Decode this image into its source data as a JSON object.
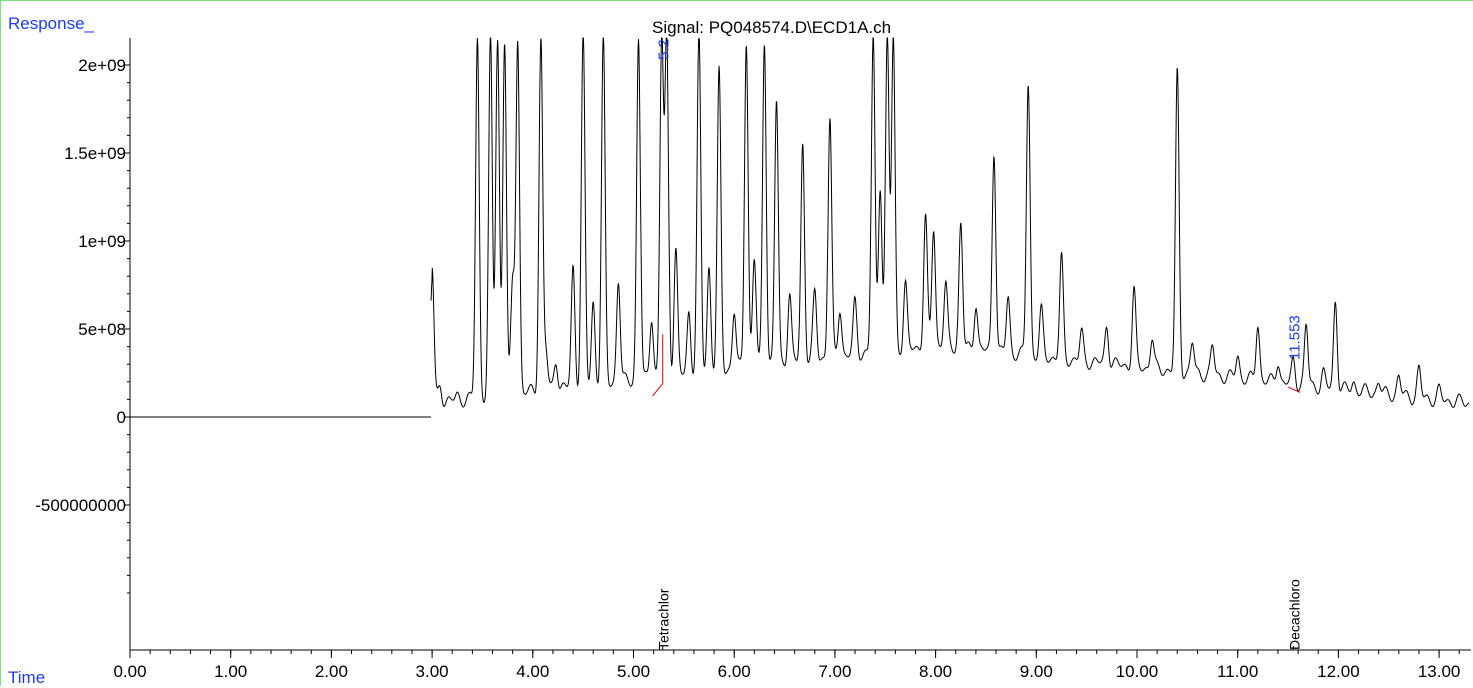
{
  "header": {
    "title": "Signal: PQ048574.D\\ECD1A.ch",
    "y_axis_label": "Response_",
    "x_axis_label": "Time"
  },
  "colors": {
    "axis_label": "#1a3cff",
    "trace": "#000000",
    "baseline": "#e00000",
    "frame": "#7fe07f"
  },
  "chart_data": {
    "type": "line",
    "title": "Signal: PQ048574.D\\ECD1A.ch",
    "xlabel": "Time",
    "ylabel": "Response_",
    "xlim": [
      0,
      13.3
    ],
    "ylim": [
      -1200000000,
      2150000000
    ],
    "x_ticks": [
      "0.00",
      "1.00",
      "2.00",
      "3.00",
      "4.00",
      "5.00",
      "6.00",
      "7.00",
      "8.00",
      "9.00",
      "10.00",
      "11.00",
      "12.00",
      "13.00"
    ],
    "y_ticks": [
      {
        "value": 2000000000,
        "label": "2e+09"
      },
      {
        "value": 1500000000,
        "label": "1.5e+09"
      },
      {
        "value": 1000000000,
        "label": "1e+09"
      },
      {
        "value": 500000000,
        "label": "5e+08"
      },
      {
        "value": 0,
        "label": "0"
      },
      {
        "value": -500000000,
        "label": "-500000000"
      }
    ],
    "baseline_level": 0,
    "series": [
      {
        "peaks": [
          [
            3.0,
            850000000
          ],
          [
            3.03,
            100000000
          ],
          [
            3.08,
            180000000
          ],
          [
            3.25,
            120000000
          ],
          [
            3.45,
            2150000000
          ],
          [
            3.58,
            2150000000
          ],
          [
            3.65,
            2150000000
          ],
          [
            3.72,
            2150000000
          ],
          [
            3.8,
            750000000
          ],
          [
            3.85,
            2150000000
          ],
          [
            4.08,
            2150000000
          ],
          [
            4.13,
            370000000
          ],
          [
            4.23,
            330000000
          ],
          [
            4.4,
            850000000
          ],
          [
            4.5,
            2150000000
          ],
          [
            4.6,
            650000000
          ],
          [
            4.7,
            2150000000
          ],
          [
            4.85,
            780000000
          ],
          [
            5.05,
            2150000000
          ],
          [
            5.18,
            580000000
          ],
          [
            5.28,
            2150000000
          ],
          [
            5.33,
            2150000000
          ],
          [
            5.42,
            950000000
          ],
          [
            5.55,
            600000000
          ],
          [
            5.65,
            2150000000
          ],
          [
            5.75,
            850000000
          ],
          [
            5.85,
            1950000000
          ],
          [
            6.0,
            600000000
          ],
          [
            6.12,
            2150000000
          ],
          [
            6.2,
            900000000
          ],
          [
            6.3,
            2150000000
          ],
          [
            6.42,
            1800000000
          ],
          [
            6.55,
            700000000
          ],
          [
            6.68,
            1550000000
          ],
          [
            6.8,
            700000000
          ],
          [
            6.95,
            1700000000
          ],
          [
            7.05,
            620000000
          ],
          [
            7.2,
            650000000
          ],
          [
            7.38,
            2150000000
          ],
          [
            7.45,
            1330000000
          ],
          [
            7.52,
            2150000000
          ],
          [
            7.58,
            2150000000
          ],
          [
            7.7,
            750000000
          ],
          [
            7.9,
            1130000000
          ],
          [
            7.98,
            1080000000
          ],
          [
            8.1,
            750000000
          ],
          [
            8.25,
            1100000000
          ],
          [
            8.4,
            650000000
          ],
          [
            8.58,
            1520000000
          ],
          [
            8.72,
            680000000
          ],
          [
            8.92,
            1900000000
          ],
          [
            9.05,
            600000000
          ],
          [
            9.25,
            900000000
          ],
          [
            9.45,
            480000000
          ],
          [
            9.7,
            520000000
          ],
          [
            9.97,
            720000000
          ],
          [
            10.15,
            450000000
          ],
          [
            10.4,
            1950000000
          ],
          [
            10.55,
            420000000
          ],
          [
            10.75,
            400000000
          ],
          [
            11.0,
            350000000
          ],
          [
            11.2,
            530000000
          ],
          [
            11.4,
            320000000
          ],
          [
            11.553,
            320000000
          ],
          [
            11.68,
            520000000
          ],
          [
            11.85,
            250000000
          ],
          [
            11.97,
            660000000
          ],
          [
            12.15,
            200000000
          ],
          [
            12.4,
            200000000
          ],
          [
            12.6,
            230000000
          ],
          [
            12.8,
            270000000
          ],
          [
            13.0,
            150000000
          ]
        ]
      }
    ],
    "annotations": [
      {
        "label": "5.2",
        "x": 5.29
      },
      {
        "label": "11.553",
        "x": 11.553
      }
    ],
    "compound_labels": [
      {
        "label": "Tetrachlor",
        "x": 5.29
      },
      {
        "label": "Decachloro",
        "x": 11.553
      }
    ]
  }
}
